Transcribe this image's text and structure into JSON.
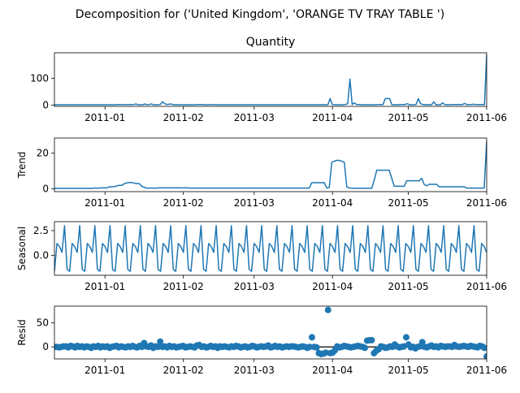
{
  "title": "Decomposition for ('United Kingdom', 'ORANGE TV TRAY TABLE ')",
  "x_tick_labels": [
    "2011-01",
    "2011-02",
    "2011-03",
    "2011-04",
    "2011-05",
    "2011-06"
  ],
  "colors": {
    "series": "#1f77b4",
    "axis": "#000000"
  },
  "chart_data": [
    {
      "type": "line",
      "title": "Quantity",
      "ylabel": "",
      "x_start": "2010-12-12",
      "ylim": [
        -5,
        195
      ],
      "yticks": [
        0,
        100
      ],
      "values": [
        1,
        1,
        1,
        1,
        1,
        1,
        1,
        1,
        1,
        1,
        1,
        1,
        1,
        1,
        1,
        1,
        1,
        1,
        1,
        1,
        1,
        1,
        1,
        1,
        1,
        1,
        1,
        1,
        1,
        2,
        2,
        1,
        1,
        2,
        2,
        1,
        2,
        4,
        1,
        1,
        1,
        4,
        1,
        2,
        4,
        1,
        1,
        1,
        2,
        12,
        5,
        2,
        3,
        4,
        1,
        1,
        1,
        1,
        1,
        1,
        1,
        1,
        1,
        1,
        1,
        2,
        2,
        2,
        1,
        1,
        1,
        2,
        1,
        1,
        1,
        1,
        1,
        1,
        1,
        1,
        1,
        1,
        1,
        1,
        1,
        1,
        1,
        1,
        1,
        1,
        1,
        1,
        1,
        1,
        1,
        1,
        1,
        1,
        1,
        1,
        1,
        1,
        1,
        1,
        1,
        1,
        1,
        1,
        1,
        1,
        1,
        1,
        1,
        1,
        1,
        1,
        1,
        1,
        1,
        1,
        1,
        1,
        1,
        1,
        1,
        24,
        2,
        1,
        1,
        1,
        1,
        1,
        2,
        5,
        97,
        2,
        8,
        2,
        2,
        1,
        1,
        1,
        1,
        1,
        1,
        1,
        1,
        2,
        2,
        2,
        24,
        24,
        24,
        1,
        1,
        1,
        1,
        2,
        2,
        2,
        5,
        1,
        1,
        1,
        2,
        24,
        5,
        2,
        2,
        1,
        1,
        1,
        12,
        1,
        1,
        1,
        8,
        2,
        1,
        1,
        2,
        2,
        2,
        2,
        2,
        2,
        6,
        2,
        2,
        2,
        3,
        2,
        2,
        2,
        2,
        2,
        190
      ],
      "x_tick_labels": [
        "2011-01",
        "2011-02",
        "2011-03",
        "2011-04",
        "2011-05",
        "2011-06"
      ]
    },
    {
      "type": "line",
      "title": "",
      "ylabel": "Trend",
      "x_start": "2010-12-12",
      "ylim": [
        -1.5,
        28.5
      ],
      "yticks": [
        0,
        20
      ],
      "values": [
        0.3,
        0.3,
        0.3,
        0.3,
        0.3,
        0.3,
        0.3,
        0.3,
        0.3,
        0.3,
        0.3,
        0.3,
        0.3,
        0.3,
        0.3,
        0.3,
        0.5,
        0.5,
        0.5,
        0.6,
        0.6,
        0.6,
        1.2,
        1.2,
        1.2,
        1.8,
        2,
        2,
        3,
        3.4,
        3.6,
        3.6,
        3.2,
        3,
        3,
        1.4,
        0.9,
        0.5,
        0.5,
        0.5,
        0.5,
        0.5,
        0.6,
        0.6,
        0.6,
        0.6,
        0.6,
        0.6,
        0.6,
        0.6,
        0.6,
        0.6,
        0.6,
        0.6,
        0.5,
        0.5,
        0.5,
        0.5,
        0.5,
        0.5,
        0.5,
        0.5,
        0.5,
        0.5,
        0.5,
        0.5,
        0.5,
        0.5,
        0.5,
        0.5,
        0.5,
        0.5,
        0.5,
        0.5,
        0.5,
        0.5,
        0.5,
        0.5,
        0.5,
        0.5,
        0.5,
        0.5,
        0.5,
        0.5,
        0.5,
        0.5,
        0.5,
        0.5,
        0.5,
        0.5,
        0.5,
        0.5,
        0.5,
        0.5,
        0.5,
        0.5,
        0.5,
        0.5,
        0.5,
        0.5,
        0.5,
        0.5,
        0.5,
        3.5,
        3.5,
        3.5,
        3.5,
        3.5,
        3.5,
        0.5,
        0.8,
        15,
        15.5,
        16,
        16,
        15.5,
        15,
        1.2,
        0.6,
        0.4,
        0.4,
        0.4,
        0.4,
        0.4,
        0.4,
        0.4,
        0.4,
        0.4,
        5,
        10.5,
        10.5,
        10.5,
        10.5,
        10.5,
        10.5,
        6,
        1.5,
        1.5,
        1.5,
        1.5,
        1.5,
        4.6,
        4.6,
        4.6,
        4.6,
        4.6,
        4.6,
        6,
        2.5,
        1.8,
        2.6,
        2.6,
        2.6,
        2.6,
        1.2,
        1.2,
        1.2,
        1.2,
        1.2,
        1.2,
        1.2,
        1.2,
        1.2,
        1.2,
        1.2,
        0.5,
        0.5,
        0.5,
        0.5,
        0.5,
        0.5,
        0.5,
        0.5,
        27
      ],
      "x_tick_labels": [
        "2011-01",
        "2011-02",
        "2011-03",
        "2011-04",
        "2011-05",
        "2011-06"
      ]
    },
    {
      "type": "line",
      "title": "",
      "ylabel": "Seasonal",
      "x_start": "2010-12-12",
      "ylim": [
        -2.0,
        3.4
      ],
      "yticks": [
        0.0,
        2.5
      ],
      "yticklabels": [
        "0.0",
        "2.5"
      ],
      "period": 6,
      "pattern": [
        -1.6,
        1.2,
        0.9,
        0.3,
        3.0,
        -1.4
      ],
      "x_tick_labels": [
        "2011-01",
        "2011-02",
        "2011-03",
        "2011-04",
        "2011-05",
        "2011-06"
      ]
    },
    {
      "type": "scatter",
      "title": "",
      "ylabel": "Resid",
      "x_start": "2010-12-12",
      "ylim": [
        -25,
        85
      ],
      "yticks": [
        0,
        50
      ],
      "zero_line": true,
      "values": [
        0,
        0,
        -1,
        0,
        1,
        1,
        -1,
        2,
        1,
        -1,
        2,
        0,
        1,
        -1,
        1,
        0,
        -2,
        1,
        0,
        2,
        -1,
        1,
        0,
        1,
        -2,
        0,
        1,
        2,
        -1,
        1,
        0,
        -1,
        1,
        0,
        2,
        0,
        -1,
        2,
        0,
        8,
        1,
        0,
        3,
        -2,
        1,
        0,
        11,
        0,
        1,
        -1,
        2,
        0,
        1,
        -1,
        0,
        1,
        2,
        -1,
        0,
        1,
        0,
        -1,
        3,
        4,
        0,
        1,
        -1,
        0,
        2,
        0,
        1,
        -2,
        1,
        0,
        1,
        0,
        -1,
        1,
        0,
        2,
        1,
        -1,
        0,
        1,
        -1,
        0,
        2,
        1,
        -1,
        0,
        1,
        0,
        1,
        3,
        -1,
        0,
        2,
        0,
        1,
        -1,
        0,
        1,
        0,
        1,
        1,
        0,
        -1,
        0,
        1,
        0,
        -2,
        0,
        20,
        0,
        -1,
        -13,
        -15,
        -14,
        -12,
        77,
        -13,
        -12,
        -7,
        1,
        -1,
        0,
        2,
        1,
        0,
        -1,
        0,
        1,
        2,
        1,
        0,
        -2,
        13,
        14,
        14,
        -13,
        -8,
        -5,
        1,
        0,
        -2,
        -1,
        1,
        0,
        5,
        1,
        -1,
        0,
        1,
        20,
        5,
        -1,
        0,
        -3,
        0,
        1,
        10,
        0,
        -1,
        1,
        3,
        0,
        1,
        -1,
        2,
        1,
        0,
        1,
        1,
        0,
        4,
        1,
        0,
        1,
        2,
        1,
        0,
        2,
        1,
        0,
        -1,
        2,
        1,
        -2,
        -20
      ],
      "x_tick_labels": [
        "2011-01",
        "2011-02",
        "2011-03",
        "2011-04",
        "2011-05",
        "2011-06"
      ]
    }
  ]
}
